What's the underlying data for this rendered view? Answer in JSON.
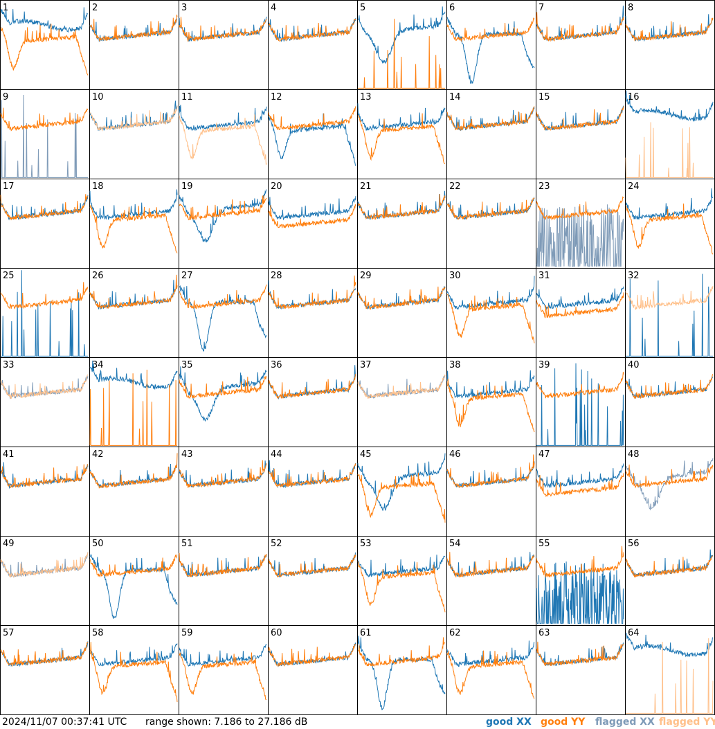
{
  "timestamp": "2024/11/07 00:37:41 UTC",
  "range_text": "range shown: 7.186 to 27.186 dB",
  "legend": {
    "good_xx": "good XX",
    "good_yy": "good YY",
    "flagged_xx": "flagged XX",
    "flagged_yy": "flagged YY"
  },
  "colors": {
    "good_xx": "#1f77b4",
    "good_yy": "#ff7f0e",
    "flagged_xx": "#7f9bb8",
    "flagged_yy": "#ffc08a"
  },
  "chart_data": {
    "type": "line",
    "ylim": [
      7.186,
      27.186
    ],
    "grid": false,
    "legend_placement": "bottom-right",
    "panels": [
      {
        "id": "1",
        "xx": "good",
        "yy": "good",
        "xx_shape": "high",
        "yy_shape": "rolloff"
      },
      {
        "id": "2",
        "xx": "good",
        "yy": "good",
        "xx_shape": "flat",
        "yy_shape": "flat"
      },
      {
        "id": "3",
        "xx": "good",
        "yy": "good",
        "xx_shape": "flat",
        "yy_shape": "flat"
      },
      {
        "id": "4",
        "xx": "good",
        "yy": "good",
        "xx_shape": "flat",
        "yy_shape": "flat"
      },
      {
        "id": "5",
        "xx": "good",
        "yy": "good",
        "xx_shape": "dip",
        "yy_shape": "spikes"
      },
      {
        "id": "6",
        "xx": "good",
        "yy": "good",
        "xx_shape": "deepdip",
        "yy_shape": "flat"
      },
      {
        "id": "7",
        "xx": "good",
        "yy": "good",
        "xx_shape": "flat",
        "yy_shape": "flat"
      },
      {
        "id": "8",
        "xx": "good",
        "yy": "good",
        "xx_shape": "flat",
        "yy_shape": "flat"
      },
      {
        "id": "9",
        "xx": "flagged",
        "yy": "good",
        "xx_shape": "spikes",
        "yy_shape": "flat"
      },
      {
        "id": "10",
        "xx": "good",
        "yy": "flagged",
        "xx_shape": "flat",
        "yy_shape": "flat"
      },
      {
        "id": "11",
        "xx": "good",
        "yy": "flagged",
        "xx_shape": "flat",
        "yy_shape": "rolloff"
      },
      {
        "id": "12",
        "xx": "good",
        "yy": "good",
        "xx_shape": "rolloff",
        "yy_shape": "flat"
      },
      {
        "id": "13",
        "xx": "good",
        "yy": "good",
        "xx_shape": "flat",
        "yy_shape": "rolloff"
      },
      {
        "id": "14",
        "xx": "good",
        "yy": "good",
        "xx_shape": "flat",
        "yy_shape": "flat"
      },
      {
        "id": "15",
        "xx": "good",
        "yy": "good",
        "xx_shape": "flat",
        "yy_shape": "flat"
      },
      {
        "id": "16",
        "xx": "good",
        "yy": "flagged",
        "xx_shape": "high",
        "yy_shape": "spikes"
      },
      {
        "id": "17",
        "xx": "good",
        "yy": "good",
        "xx_shape": "flat",
        "yy_shape": "flat"
      },
      {
        "id": "18",
        "xx": "good",
        "yy": "good",
        "xx_shape": "flat",
        "yy_shape": "rolloff"
      },
      {
        "id": "19",
        "xx": "good",
        "yy": "good",
        "xx_shape": "dip",
        "yy_shape": "flat"
      },
      {
        "id": "20",
        "xx": "good",
        "yy": "good",
        "xx_shape": "flat",
        "yy_shape": "low"
      },
      {
        "id": "21",
        "xx": "good",
        "yy": "good",
        "xx_shape": "flat",
        "yy_shape": "flat"
      },
      {
        "id": "22",
        "xx": "good",
        "yy": "good",
        "xx_shape": "flat",
        "yy_shape": "flat"
      },
      {
        "id": "23",
        "xx": "flagged",
        "yy": "good",
        "xx_shape": "noisy",
        "yy_shape": "flat"
      },
      {
        "id": "24",
        "xx": "good",
        "yy": "good",
        "xx_shape": "flat",
        "yy_shape": "rolloff"
      },
      {
        "id": "25",
        "xx": "good",
        "yy": "good",
        "xx_shape": "spikes",
        "yy_shape": "flat"
      },
      {
        "id": "26",
        "xx": "good",
        "yy": "good",
        "xx_shape": "flat",
        "yy_shape": "flat"
      },
      {
        "id": "27",
        "xx": "good",
        "yy": "good",
        "xx_shape": "deepdip",
        "yy_shape": "flat"
      },
      {
        "id": "28",
        "xx": "good",
        "yy": "good",
        "xx_shape": "flat",
        "yy_shape": "flat"
      },
      {
        "id": "29",
        "xx": "good",
        "yy": "good",
        "xx_shape": "flat",
        "yy_shape": "flat"
      },
      {
        "id": "30",
        "xx": "good",
        "yy": "good",
        "xx_shape": "flat",
        "yy_shape": "rolloff"
      },
      {
        "id": "31",
        "xx": "good",
        "yy": "good",
        "xx_shape": "flat",
        "yy_shape": "low"
      },
      {
        "id": "32",
        "xx": "good",
        "yy": "flagged",
        "xx_shape": "spikes",
        "yy_shape": "flat"
      },
      {
        "id": "33",
        "xx": "flagged",
        "yy": "flagged",
        "xx_shape": "flat",
        "yy_shape": "flat"
      },
      {
        "id": "34",
        "xx": "good",
        "yy": "good",
        "xx_shape": "high",
        "yy_shape": "spikes"
      },
      {
        "id": "35",
        "xx": "good",
        "yy": "good",
        "xx_shape": "dip",
        "yy_shape": "flat"
      },
      {
        "id": "36",
        "xx": "good",
        "yy": "good",
        "xx_shape": "flat",
        "yy_shape": "flat"
      },
      {
        "id": "37",
        "xx": "flagged",
        "yy": "flagged",
        "xx_shape": "flat",
        "yy_shape": "flat"
      },
      {
        "id": "38",
        "xx": "good",
        "yy": "good",
        "xx_shape": "flat",
        "yy_shape": "rolloff"
      },
      {
        "id": "39",
        "xx": "good",
        "yy": "good",
        "xx_shape": "spikes",
        "yy_shape": "flat"
      },
      {
        "id": "40",
        "xx": "good",
        "yy": "good",
        "xx_shape": "flat",
        "yy_shape": "flat"
      },
      {
        "id": "41",
        "xx": "good",
        "yy": "good",
        "xx_shape": "flat",
        "yy_shape": "flat"
      },
      {
        "id": "42",
        "xx": "good",
        "yy": "good",
        "xx_shape": "flat",
        "yy_shape": "flat"
      },
      {
        "id": "43",
        "xx": "good",
        "yy": "good",
        "xx_shape": "flat",
        "yy_shape": "flat"
      },
      {
        "id": "44",
        "xx": "good",
        "yy": "good",
        "xx_shape": "flat",
        "yy_shape": "flat"
      },
      {
        "id": "45",
        "xx": "good",
        "yy": "good",
        "xx_shape": "dip",
        "yy_shape": "rolloff"
      },
      {
        "id": "46",
        "xx": "good",
        "yy": "good",
        "xx_shape": "flat",
        "yy_shape": "flat"
      },
      {
        "id": "47",
        "xx": "good",
        "yy": "good",
        "xx_shape": "flat",
        "yy_shape": "low"
      },
      {
        "id": "48",
        "xx": "flagged",
        "yy": "good",
        "xx_shape": "dip",
        "yy_shape": "flat"
      },
      {
        "id": "49",
        "xx": "flagged",
        "yy": "flagged",
        "xx_shape": "flat",
        "yy_shape": "flat"
      },
      {
        "id": "50",
        "xx": "good",
        "yy": "good",
        "xx_shape": "deepdip",
        "yy_shape": "flat"
      },
      {
        "id": "51",
        "xx": "good",
        "yy": "good",
        "xx_shape": "flat",
        "yy_shape": "flat"
      },
      {
        "id": "52",
        "xx": "good",
        "yy": "good",
        "xx_shape": "flat",
        "yy_shape": "flat"
      },
      {
        "id": "53",
        "xx": "good",
        "yy": "good",
        "xx_shape": "flat",
        "yy_shape": "rolloff"
      },
      {
        "id": "54",
        "xx": "good",
        "yy": "good",
        "xx_shape": "flat",
        "yy_shape": "flat"
      },
      {
        "id": "55",
        "xx": "good",
        "yy": "good",
        "xx_shape": "noisy",
        "yy_shape": "flat"
      },
      {
        "id": "56",
        "xx": "good",
        "yy": "good",
        "xx_shape": "flat",
        "yy_shape": "flat"
      },
      {
        "id": "57",
        "xx": "good",
        "yy": "good",
        "xx_shape": "flat",
        "yy_shape": "flat"
      },
      {
        "id": "58",
        "xx": "good",
        "yy": "good",
        "xx_shape": "flat",
        "yy_shape": "rolloff"
      },
      {
        "id": "59",
        "xx": "good",
        "yy": "good",
        "xx_shape": "flat",
        "yy_shape": "rolloff"
      },
      {
        "id": "60",
        "xx": "good",
        "yy": "good",
        "xx_shape": "flat",
        "yy_shape": "flat"
      },
      {
        "id": "61",
        "xx": "good",
        "yy": "good",
        "xx_shape": "deepdip",
        "yy_shape": "flat"
      },
      {
        "id": "62",
        "xx": "good",
        "yy": "good",
        "xx_shape": "flat",
        "yy_shape": "rolloff"
      },
      {
        "id": "63",
        "xx": "good",
        "yy": "good",
        "xx_shape": "flat",
        "yy_shape": "flat"
      },
      {
        "id": "64",
        "xx": "good",
        "yy": "flagged",
        "xx_shape": "high",
        "yy_shape": "spikes"
      }
    ]
  }
}
